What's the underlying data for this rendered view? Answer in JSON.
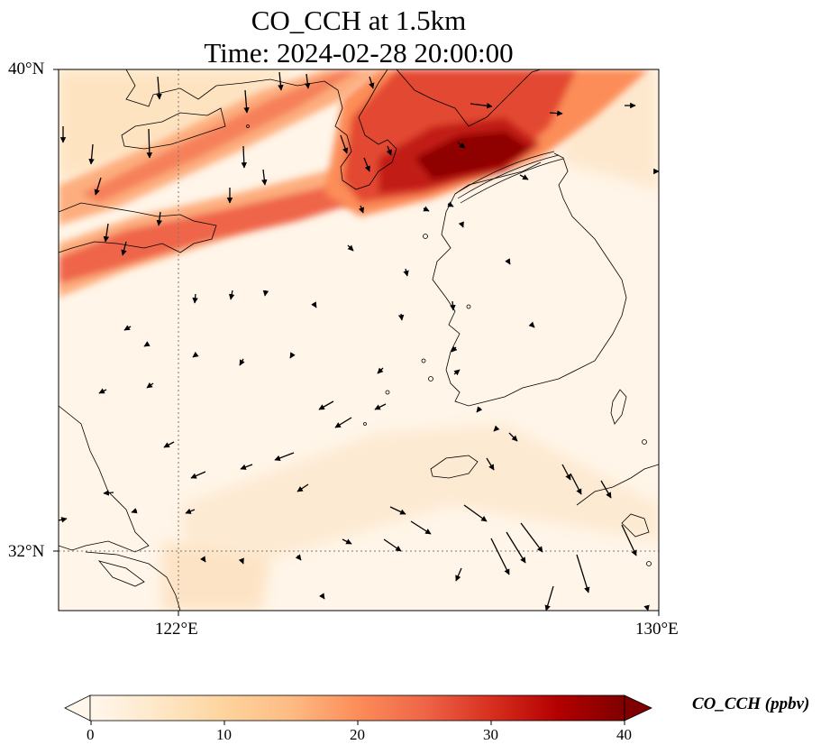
{
  "title": {
    "line1": "CO_CCH at 1.5km",
    "line2": "Time: 2024-02-28 20:00:00"
  },
  "axes": {
    "lat_labels": [
      "40°N",
      "32°N"
    ],
    "lon_labels": [
      "122°E",
      "130°E"
    ],
    "extent": {
      "lon_min": 120,
      "lon_max": 130,
      "lat_min": 31,
      "lat_max": 40
    },
    "gridlines": "dotted"
  },
  "colorbar": {
    "label": "CO_CCH (ppbv)",
    "ticks": [
      "0",
      "10",
      "20",
      "30",
      "40"
    ],
    "range": [
      0,
      40
    ],
    "colormap": "OrRd",
    "extend": "both",
    "stops": [
      "#fff7ec",
      "#fee8c8",
      "#fdd49e",
      "#fdbb84",
      "#fc8d59",
      "#ef6548",
      "#d7301f",
      "#b30000",
      "#7f0000"
    ]
  },
  "field_features": [
    {
      "name": "plume-main",
      "description_values_ppbv": 30
    },
    {
      "name": "plume-core",
      "description_values_ppbv": 38
    },
    {
      "name": "plume-upper-band",
      "description_values_ppbv": 18
    },
    {
      "name": "plume-lower-band",
      "description_values_ppbv": 22
    }
  ],
  "wind_vectors": "arrows",
  "colors": {
    "coastline": "#000000",
    "arrow": "#000000",
    "grid": "#777777",
    "background": "#fff5e8"
  }
}
